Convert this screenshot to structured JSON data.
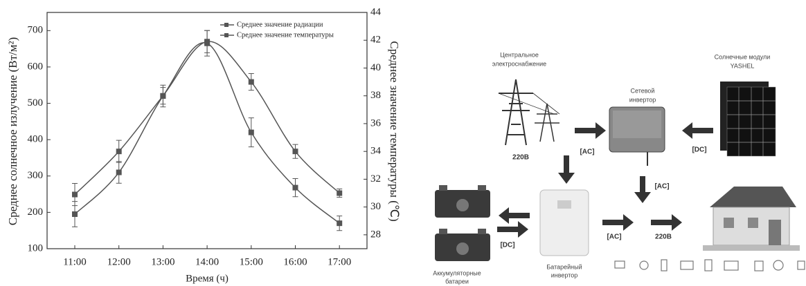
{
  "chart_data": {
    "type": "line",
    "xlabel": "Время (ч)",
    "ylabel": "Среднее солнечное излучение (Вт/м²)",
    "y2label": "Среднее значение температуры (℃)",
    "categories": [
      "11:00",
      "12:00",
      "13:00",
      "14:00",
      "15:00",
      "16:00",
      "17:00"
    ],
    "series": [
      {
        "name": "Среднее значение радиации",
        "color": "#555555",
        "values": [
          195,
          310,
          520,
          665,
          420,
          268,
          170
        ],
        "errors": [
          35,
          30,
          30,
          35,
          40,
          25,
          20
        ]
      },
      {
        "name": "Среднее значение температуры",
        "color": "#555555",
        "axis": "y2",
        "values": [
          30.9,
          34.0,
          38.0,
          41.9,
          39.0,
          34.0,
          31.0
        ],
        "errors": [
          0.8,
          0.8,
          0.6,
          0.8,
          0.6,
          0.5,
          0.3
        ]
      }
    ],
    "ylim": [
      100,
      750
    ],
    "yticks": [
      100,
      200,
      300,
      400,
      500,
      600,
      700
    ],
    "y2lim": [
      27,
      44
    ],
    "y2ticks": [
      28,
      30,
      32,
      34,
      36,
      38,
      40,
      42,
      44
    ],
    "legend": "top-right"
  },
  "diagram": {
    "grid": {
      "lines": [
        "Центральное",
        "электроснабжение"
      ],
      "voltage": "220В"
    },
    "grid_inverter": {
      "lines": [
        "Сетевой",
        "инвертор"
      ]
    },
    "solar": {
      "lines": [
        "Солнечные модули",
        "YASHEL"
      ]
    },
    "links": [
      "[AC]",
      "[DC]",
      "[AC]",
      "[DC]",
      "[AC]"
    ],
    "house_voltage": "220В",
    "batteries": {
      "lines": [
        "Аккумуляторные",
        "батареи"
      ]
    },
    "battery_inverter": {
      "lines": [
        "Батарейный",
        "инвертор"
      ]
    }
  }
}
